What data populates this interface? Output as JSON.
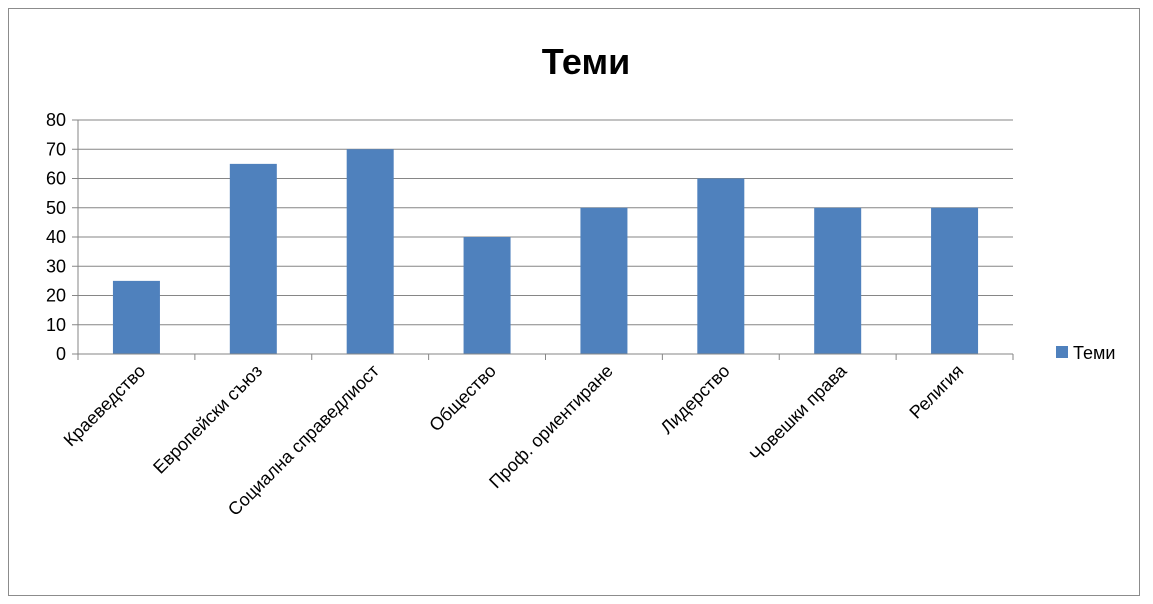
{
  "chart_data": {
    "type": "bar",
    "title": "Теми",
    "xlabel": "",
    "ylabel": "",
    "categories": [
      "Краеведство",
      "Европейски съюз",
      "Социална справедлиост",
      "Общество",
      "Проф. ориентиране",
      "Лидерство",
      "Човешки права",
      "Религия"
    ],
    "series": [
      {
        "name": "Теми",
        "values": [
          25,
          65,
          70,
          40,
          50,
          60,
          50,
          50
        ],
        "color": "#4f81bd"
      }
    ],
    "ylim": [
      0,
      80
    ],
    "y_ticks": [
      "0",
      "10",
      "20",
      "30",
      "40",
      "50",
      "60",
      "70",
      "80"
    ],
    "grid": true,
    "legend": "right"
  }
}
